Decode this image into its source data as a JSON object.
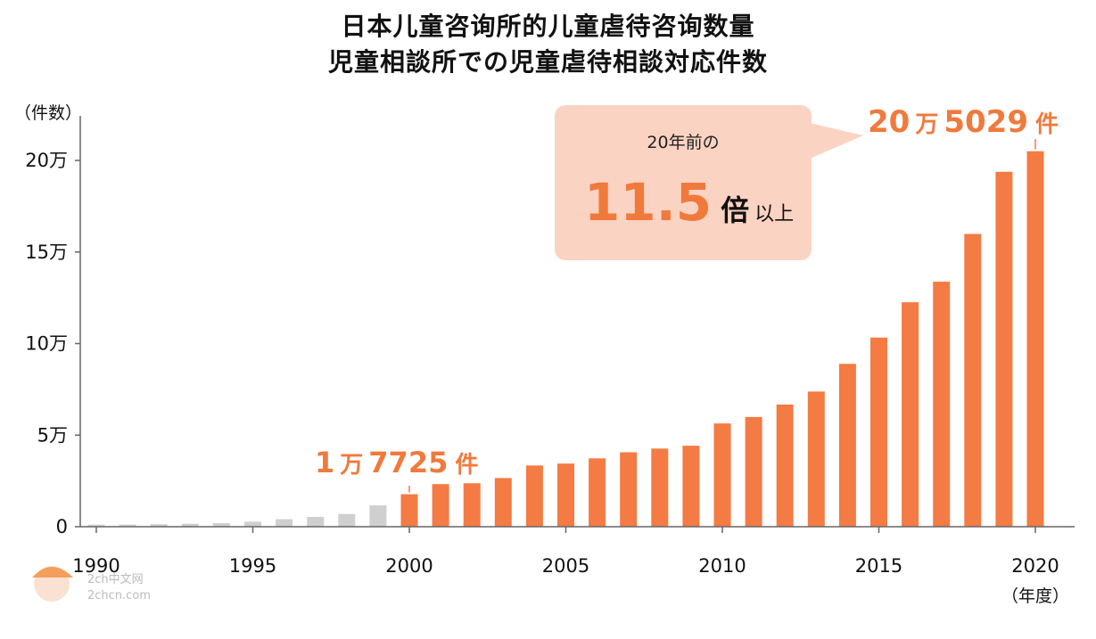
{
  "chart_data": {
    "type": "bar",
    "title": "日本儿童咨询所的儿童虐待咨询数量",
    "subtitle": "児童相談所での児童虐待相談対応件数",
    "ylabel": "（件数）",
    "xlabel": "（年度）",
    "ylim": [
      0,
      225000
    ],
    "yticks": [
      {
        "value": 0,
        "label": "0"
      },
      {
        "value": 50000,
        "label": "5万"
      },
      {
        "value": 100000,
        "label": "10万"
      },
      {
        "value": 150000,
        "label": "15万"
      },
      {
        "value": 200000,
        "label": "20万"
      }
    ],
    "xticks": [
      1990,
      1995,
      2000,
      2005,
      2010,
      2015,
      2020
    ],
    "years": [
      1990,
      1991,
      1992,
      1993,
      1994,
      1995,
      1996,
      1997,
      1998,
      1999,
      2000,
      2001,
      2002,
      2003,
      2004,
      2005,
      2006,
      2007,
      2008,
      2009,
      2010,
      2011,
      2012,
      2013,
      2014,
      2015,
      2016,
      2017,
      2018,
      2019,
      2020
    ],
    "values": [
      1101,
      1171,
      1372,
      1611,
      1961,
      2722,
      4102,
      5352,
      6932,
      11631,
      17725,
      23274,
      23738,
      26569,
      33408,
      34472,
      37323,
      40639,
      42664,
      44211,
      56384,
      59919,
      66701,
      73802,
      88931,
      103286,
      122575,
      133778,
      159838,
      193780,
      205029
    ],
    "highlight_from": 2000,
    "colors": {
      "gray": "#cfcfcf",
      "orange": "#f47b43",
      "callout_bg": "#fbd3c2"
    },
    "annotations": {
      "start": {
        "prefix": "1",
        "unit": "万",
        "num": "7725",
        "suffix": "件"
      },
      "end": {
        "prefix": "20",
        "unit": "万",
        "num": "5029",
        "suffix": "件"
      }
    },
    "callout": {
      "line1": "20年前の",
      "big": "11.5",
      "mid": "倍",
      "small": "以上"
    }
  },
  "watermark": {
    "text1": "2ch中文网",
    "text2": "2chcn.com"
  }
}
